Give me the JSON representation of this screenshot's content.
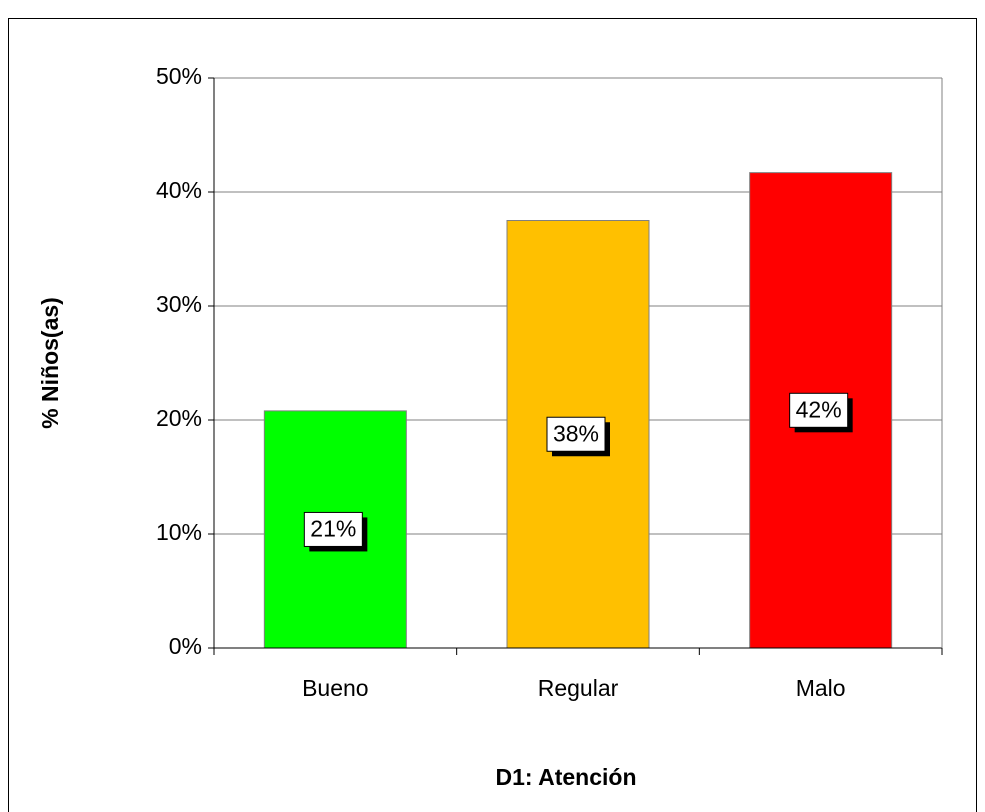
{
  "chart_data": {
    "type": "bar",
    "x_label": "D1: Atención",
    "y_label": "% Niños(as)",
    "categories": [
      "Bueno",
      "Regular",
      "Malo"
    ],
    "values": [
      20.8,
      37.5,
      41.7
    ],
    "value_labels": [
      "21%",
      "38%",
      "42%"
    ],
    "colors": [
      "#00ff00",
      "#ffc000",
      "#ff0000"
    ],
    "ylim": [
      0,
      50
    ],
    "yticks": [
      {
        "value": 0,
        "label": "0%"
      },
      {
        "value": 10,
        "label": "10%"
      },
      {
        "value": 20,
        "label": "20%"
      },
      {
        "value": 30,
        "label": "30%"
      },
      {
        "value": 40,
        "label": "40%"
      },
      {
        "value": 50,
        "label": "50%"
      }
    ],
    "grid": true
  }
}
